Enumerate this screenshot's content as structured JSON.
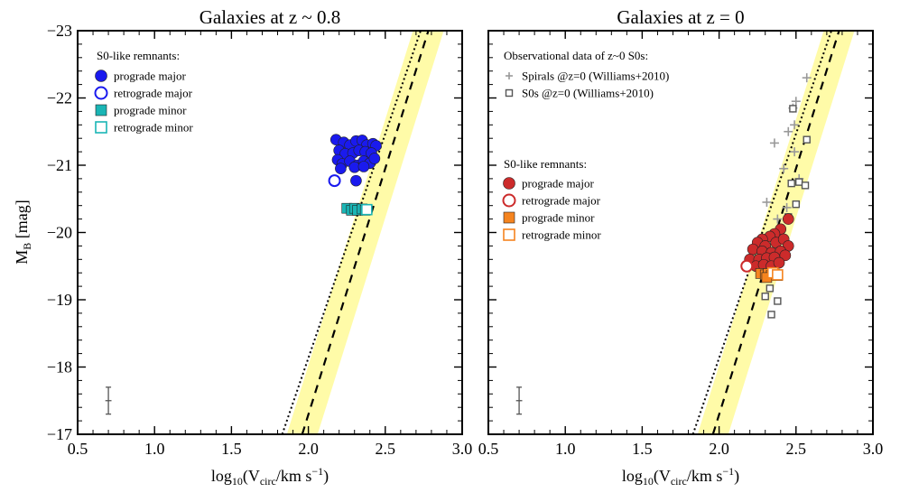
{
  "chart_data": [
    {
      "type": "scatter",
      "title": "Galaxies at z ~ 0.8",
      "xlabel": "log10(Vcirc/km s^-1)",
      "ylabel": "MB [mag]",
      "xlim": [
        0.5,
        3.0
      ],
      "ylim": [
        -17,
        -23
      ],
      "x_ticks": [
        "0.5",
        "1.0",
        "1.5",
        "2.0",
        "2.5",
        "3.0"
      ],
      "y_ticks": [
        "−23",
        "−22",
        "−21",
        "−20",
        "−19",
        "−18",
        "−17"
      ],
      "legend_title": "S0-like remnants:",
      "legend": [
        {
          "name": "prograde major",
          "marker": "circle",
          "filled": true,
          "color": "#1a1aee"
        },
        {
          "name": "retrograde major",
          "marker": "circle",
          "filled": false,
          "color": "#1a1aee"
        },
        {
          "name": "prograde minor",
          "marker": "square",
          "filled": true,
          "color": "#1ab5b5"
        },
        {
          "name": "retrograde minor",
          "marker": "square",
          "filled": false,
          "color": "#1ab5b5"
        }
      ],
      "series": [
        {
          "name": "prograde major",
          "color": "#1a1aee",
          "points": [
            [
              2.18,
              -21.38
            ],
            [
              2.23,
              -21.34
            ],
            [
              2.27,
              -21.3
            ],
            [
              2.31,
              -21.36
            ],
            [
              2.35,
              -21.37
            ],
            [
              2.38,
              -21.3
            ],
            [
              2.42,
              -21.32
            ],
            [
              2.44,
              -21.29
            ],
            [
              2.2,
              -21.22
            ],
            [
              2.24,
              -21.17
            ],
            [
              2.29,
              -21.18
            ],
            [
              2.33,
              -21.22
            ],
            [
              2.37,
              -21.2
            ],
            [
              2.41,
              -21.18
            ],
            [
              2.19,
              -21.08
            ],
            [
              2.22,
              -21.02
            ],
            [
              2.27,
              -21.06
            ],
            [
              2.32,
              -21.0
            ],
            [
              2.36,
              -21.06
            ],
            [
              2.4,
              -21.03
            ],
            [
              2.43,
              -21.1
            ],
            [
              2.21,
              -20.95
            ],
            [
              2.3,
              -20.97
            ],
            [
              2.36,
              -20.98
            ],
            [
              2.31,
              -20.77
            ]
          ]
        },
        {
          "name": "retrograde major",
          "color": "#1a1aee",
          "points": [
            [
              2.17,
              -20.77
            ]
          ]
        },
        {
          "name": "prograde minor",
          "color": "#1ab5b5",
          "points": [
            [
              2.25,
              -20.36
            ],
            [
              2.28,
              -20.33
            ],
            [
              2.3,
              -20.36
            ],
            [
              2.32,
              -20.33
            ],
            [
              2.35,
              -20.35
            ],
            [
              2.37,
              -20.33
            ]
          ]
        },
        {
          "name": "retrograde minor",
          "color": "#1ab5b5",
          "points": [
            [
              2.38,
              -20.34
            ]
          ]
        }
      ],
      "errorbar": {
        "x": 0.7,
        "y": -17.5,
        "xerr": 0.02,
        "yerr": 0.2
      }
    },
    {
      "type": "scatter",
      "title": "Galaxies at z = 0",
      "xlabel": "log10(Vcirc/km s^-1)",
      "ylabel": "MB [mag]",
      "xlim": [
        0.5,
        3.0
      ],
      "ylim": [
        -17,
        -23
      ],
      "x_ticks": [
        "0.5",
        "1.0",
        "1.5",
        "2.0",
        "2.5",
        "3.0"
      ],
      "obs_legend_title": "Observational data of z~0 S0s:",
      "obs_legend": [
        {
          "name": "Spirals @z=0 (Williams+2010)",
          "marker": "plus",
          "color": "#999999"
        },
        {
          "name": "S0s @z=0 (Williams+2010)",
          "marker": "square",
          "filled": false,
          "color": "#555555"
        }
      ],
      "legend_title": "S0-like remnants:",
      "legend": [
        {
          "name": "prograde major",
          "marker": "circle",
          "filled": true,
          "color": "#cc2b2b"
        },
        {
          "name": "retrograde major",
          "marker": "circle",
          "filled": false,
          "color": "#cc2b2b"
        },
        {
          "name": "prograde minor",
          "marker": "square",
          "filled": true,
          "color": "#f5841f"
        },
        {
          "name": "retrograde minor",
          "marker": "square",
          "filled": false,
          "color": "#f5841f"
        }
      ],
      "series": [
        {
          "name": "Spirals @z=0 (Williams+2010)",
          "color": "#999999",
          "points": [
            [
              2.57,
              -22.3
            ],
            [
              2.5,
              -21.95
            ],
            [
              2.48,
              -21.85
            ],
            [
              2.45,
              -21.5
            ],
            [
              2.49,
              -21.6
            ],
            [
              2.36,
              -21.33
            ],
            [
              2.49,
              -21.2
            ],
            [
              2.42,
              -20.95
            ],
            [
              2.52,
              -20.8
            ],
            [
              2.31,
              -20.45
            ],
            [
              2.44,
              -20.37
            ],
            [
              2.38,
              -20.2
            ]
          ]
        },
        {
          "name": "S0s @z=0 (Williams+2010)",
          "color": "#555555",
          "points": [
            [
              2.48,
              -21.84
            ],
            [
              2.57,
              -21.38
            ],
            [
              2.47,
              -20.73
            ],
            [
              2.52,
              -20.75
            ],
            [
              2.56,
              -20.7
            ],
            [
              2.5,
              -20.42
            ],
            [
              2.45,
              -20.23
            ],
            [
              2.33,
              -19.17
            ],
            [
              2.3,
              -19.05
            ],
            [
              2.38,
              -18.98
            ],
            [
              2.34,
              -18.78
            ]
          ]
        },
        {
          "name": "prograde major",
          "color": "#cc2b2b",
          "points": [
            [
              2.45,
              -20.2
            ],
            [
              2.4,
              -20.05
            ],
            [
              2.36,
              -19.98
            ],
            [
              2.33,
              -19.94
            ],
            [
              2.28,
              -19.9
            ],
            [
              2.25,
              -19.85
            ],
            [
              2.3,
              -19.8
            ],
            [
              2.37,
              -19.85
            ],
            [
              2.42,
              -19.9
            ],
            [
              2.45,
              -19.8
            ],
            [
              2.22,
              -19.75
            ],
            [
              2.28,
              -19.72
            ],
            [
              2.34,
              -19.7
            ],
            [
              2.4,
              -19.72
            ],
            [
              2.43,
              -19.66
            ],
            [
              2.2,
              -19.6
            ],
            [
              2.26,
              -19.6
            ],
            [
              2.31,
              -19.62
            ],
            [
              2.36,
              -19.63
            ],
            [
              2.24,
              -19.5
            ],
            [
              2.29,
              -19.52
            ],
            [
              2.34,
              -19.5
            ],
            [
              2.39,
              -19.55
            ]
          ]
        },
        {
          "name": "retrograde major",
          "color": "#cc2b2b",
          "points": [
            [
              2.18,
              -19.5
            ]
          ]
        },
        {
          "name": "prograde minor",
          "color": "#f5841f",
          "points": [
            [
              2.27,
              -19.39
            ],
            [
              2.3,
              -19.37
            ],
            [
              2.32,
              -19.39
            ],
            [
              2.34,
              -19.36
            ],
            [
              2.36,
              -19.38
            ],
            [
              2.38,
              -19.36
            ],
            [
              2.31,
              -19.33
            ]
          ]
        },
        {
          "name": "retrograde minor",
          "color": "#f5841f",
          "points": [
            [
              2.35,
              -19.4
            ],
            [
              2.38,
              -19.37
            ]
          ]
        }
      ],
      "errorbar": {
        "x": 0.7,
        "y": -17.5,
        "xerr": 0.02,
        "yerr": 0.2
      }
    }
  ],
  "lines": {
    "dashed": {
      "points": [
        [
          1.96,
          -17.0
        ],
        [
          2.78,
          -23.0
        ]
      ],
      "band_halfwidth": 0.1
    },
    "dotted": {
      "points": [
        [
          1.83,
          -17.0
        ],
        [
          2.73,
          -23.0
        ]
      ]
    },
    "band_color": "#fffba8"
  }
}
